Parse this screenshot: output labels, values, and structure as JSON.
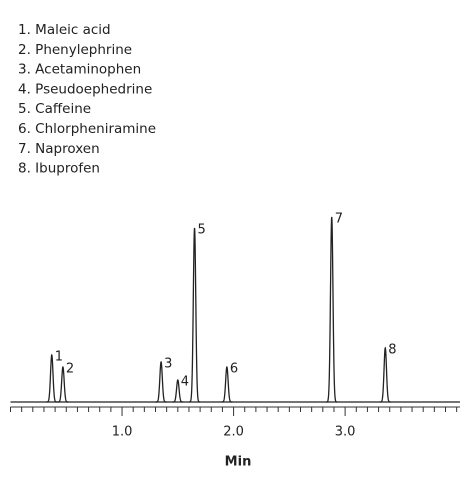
{
  "chart_data": {
    "type": "chromatogram",
    "legend": [
      "1. Maleic acid",
      "2. Phenylephrine",
      "3. Acetaminophen",
      "4. Pseudoephedrine",
      "5. Caffeine",
      "6. Chlorpheniramine",
      "7. Naproxen",
      "8. Ibuprofen"
    ],
    "xlabel": "Min",
    "peaks": {
      "labels": [
        "1",
        "2",
        "3",
        "4",
        "5",
        "6",
        "7",
        "8"
      ],
      "x": [
        0.37,
        0.47,
        1.35,
        1.5,
        1.65,
        1.94,
        2.88,
        3.36
      ],
      "heights": [
        47,
        35,
        40,
        22,
        174,
        35,
        185,
        54
      ]
    },
    "color": "#222222",
    "xlim": [
      0,
      4.03
    ],
    "ylim": [
      0,
      200
    ],
    "xticks": [
      {
        "value": 1,
        "label": "1.0"
      },
      {
        "value": 2,
        "label": "2.0"
      },
      {
        "value": 3,
        "label": "3.0"
      }
    ],
    "xminorticks": [
      0,
      0.1,
      0.2,
      0.3,
      0.4,
      0.5,
      0.6,
      0.7,
      0.8,
      0.9,
      1.1,
      1.2,
      1.3,
      1.4,
      1.5,
      1.6,
      1.7,
      1.8,
      1.9,
      2.1,
      2.2,
      2.3,
      2.4,
      2.5,
      2.6,
      2.7,
      2.8,
      2.9,
      3.1,
      3.2,
      3.3,
      3.4,
      3.5,
      3.6,
      3.7,
      3.8,
      3.9,
      4.0
    ]
  }
}
